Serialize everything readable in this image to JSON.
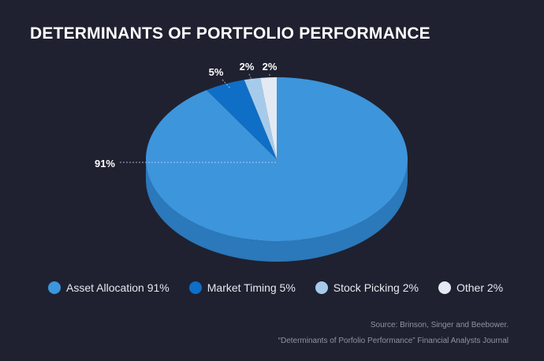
{
  "title": "DETERMINANTS OF PORTFOLIO PERFORMANCE",
  "chart_data": {
    "type": "pie",
    "style": "3d",
    "slices": [
      {
        "label": "Asset Allocation",
        "value": 91,
        "data_label": "91%",
        "legend": "Asset Allocation 91%",
        "color": "#3d95dc",
        "side_color": "#2b78ba"
      },
      {
        "label": "Market Timing",
        "value": 5,
        "data_label": "5%",
        "legend": "Market Timing 5%",
        "color": "#0f6ec6",
        "side_color": "#0b579d"
      },
      {
        "label": "Stock Picking",
        "value": 2,
        "data_label": "2%",
        "legend": "Stock Picking 2%",
        "color": "#a6cbea",
        "side_color": "#84aed2"
      },
      {
        "label": "Other",
        "value": 2,
        "data_label": "2%",
        "legend": "Other 2%",
        "color": "#e3eaf3",
        "side_color": "#c7d0dc"
      }
    ],
    "legend_position": "bottom"
  },
  "source": {
    "line1": "Source: Brinson, Singer and Beebower.",
    "line2": "“Determinants of Porfolio Performance” Financial Analysts Journal"
  }
}
